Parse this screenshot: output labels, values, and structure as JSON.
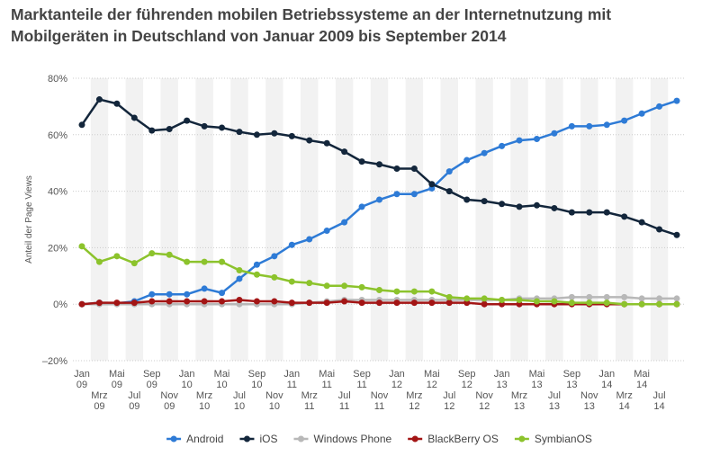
{
  "chart_data": {
    "type": "line",
    "title": "Marktanteile der führenden mobilen Betriebssysteme an der Internetnutzung mit Mobilgeräten in Deutschland von Januar 2009 bis September 2014",
    "y_label": "Anteil der Page Views",
    "categories": [
      "Jan 09",
      "Mrz 09",
      "Mai 09",
      "Jul 09",
      "Sep 09",
      "Nov 09",
      "Jan 10",
      "Mrz 10",
      "Mai 10",
      "Jul 10",
      "Sep 10",
      "Nov 10",
      "Jan 11",
      "Mrz 11",
      "Mai 11",
      "Jul 11",
      "Sep 11",
      "Nov 11",
      "Jan 12",
      "Mrz 12",
      "Mai 12",
      "Jul 12",
      "Sep 12",
      "Nov 12",
      "Jan 13",
      "Mrz 13",
      "Mai 13",
      "Jul 13",
      "Sep 13",
      "Nov 13",
      "Jan 14",
      "Mrz 14",
      "Mai 14",
      "Jul 14",
      null
    ],
    "ylim": [
      -20,
      80
    ],
    "yticks": [
      {
        "value": -20,
        "label": "–20%"
      },
      {
        "value": 0,
        "label": "0%"
      },
      {
        "value": 20,
        "label": "20%"
      },
      {
        "value": 40,
        "label": "40%"
      },
      {
        "value": 60,
        "label": "60%"
      },
      {
        "value": 80,
        "label": "80%"
      }
    ],
    "grid": true,
    "legend": "bottom",
    "series": [
      {
        "name": "Android",
        "color": "#2e7bd6",
        "values": [
          0,
          0.5,
          0.3,
          1,
          3.5,
          3.5,
          3.5,
          5.5,
          4,
          9,
          14,
          17,
          21,
          23,
          26,
          29,
          34.5,
          37,
          39,
          39,
          41,
          47,
          51,
          53.5,
          56,
          58,
          58.5,
          60.5,
          63,
          63,
          63.5,
          65,
          67.5,
          70,
          72
        ]
      },
      {
        "name": "iOS",
        "color": "#13263b",
        "values": [
          63.5,
          72.5,
          71,
          66,
          61.5,
          62,
          65,
          63,
          62.5,
          61,
          60,
          60.5,
          59.5,
          58,
          57,
          54,
          50.5,
          49.5,
          48,
          48,
          42.5,
          40,
          37,
          36.5,
          35.5,
          34.5,
          35,
          34,
          32.5,
          32.5,
          32.5,
          31,
          29,
          26.5,
          24.5
        ]
      },
      {
        "name": "Windows Phone",
        "color": "#b8b8b8",
        "values": [
          0,
          0,
          0,
          0,
          0,
          0,
          0,
          0,
          0,
          0,
          0,
          0,
          0,
          0.5,
          1,
          1.5,
          1.5,
          1.5,
          1.5,
          1.5,
          1.5,
          1.5,
          1.5,
          1.5,
          1.5,
          2,
          2,
          2,
          2.5,
          2.5,
          2.5,
          2.5,
          2,
          2,
          2
        ]
      },
      {
        "name": "BlackBerry OS",
        "color": "#a31515",
        "values": [
          0,
          0.5,
          0.5,
          0.5,
          1,
          1,
          1,
          1,
          1,
          1.5,
          1,
          1,
          0.5,
          0.5,
          0.5,
          1,
          0.5,
          0.5,
          0.5,
          0.5,
          0.5,
          0.5,
          0.5,
          0,
          0,
          0,
          0,
          0,
          0,
          0,
          0,
          0,
          0,
          0,
          0
        ]
      },
      {
        "name": "SymbianOS",
        "color": "#8cc32c",
        "values": [
          20.5,
          15,
          17,
          14.5,
          18,
          17.5,
          15,
          15,
          15,
          12,
          10.5,
          9.5,
          8,
          7.5,
          6.5,
          6.5,
          6,
          5,
          4.5,
          4.5,
          4.5,
          2.5,
          2,
          2,
          1.5,
          1.5,
          1,
          1,
          0.5,
          0.5,
          0.5,
          0,
          0,
          0,
          0
        ]
      }
    ]
  }
}
